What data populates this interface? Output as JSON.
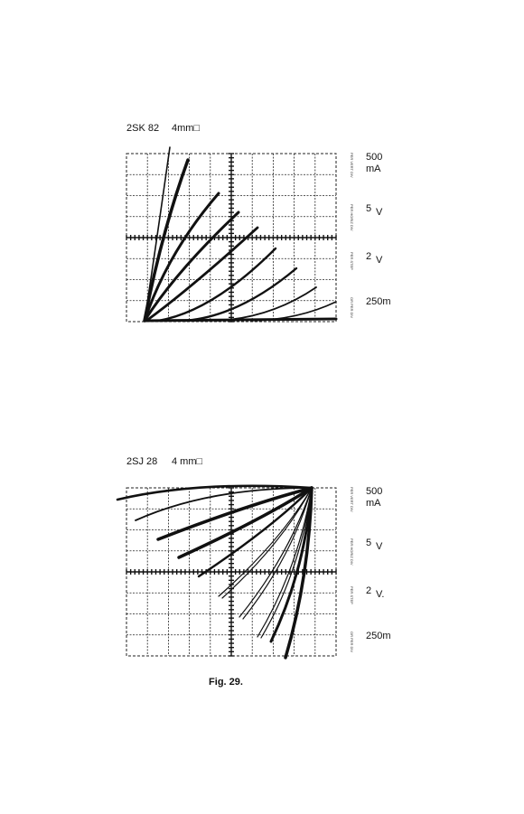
{
  "figures": [
    {
      "title": "2SK 82",
      "size": "4mm□",
      "settings": [
        {
          "label": "PER VERT DIV",
          "value": "500",
          "unit": "mA"
        },
        {
          "label": "PER HORIZ DIV",
          "value": "5",
          "unit": "V"
        },
        {
          "label": "PER STEP",
          "value": "2",
          "unit": "V"
        },
        {
          "label": "OR PER DIV",
          "value": "250m"
        }
      ]
    },
    {
      "title": "2SJ 28",
      "size": "4 mm□",
      "settings": [
        {
          "label": "PER VERT DIV",
          "value": "500",
          "unit": "mA"
        },
        {
          "label": "PER HORIZ DIV",
          "value": "5",
          "unit": "V"
        },
        {
          "label": "PER STEP",
          "value": "2",
          "unit": "V."
        },
        {
          "label": "OR PER DIV",
          "value": "250m"
        }
      ]
    }
  ],
  "caption": "Fig. 29."
}
